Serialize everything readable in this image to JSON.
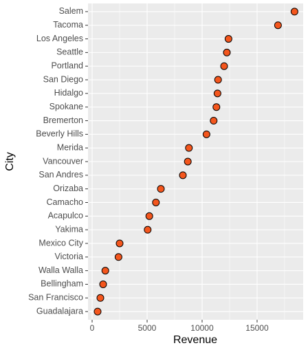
{
  "chart_data": {
    "type": "dot",
    "x_label": "Revenue",
    "y_label": "City",
    "categories": [
      "Salem",
      "Tacoma",
      "Los Angeles",
      "Seattle",
      "Portland",
      "San Diego",
      "Hidalgo",
      "Spokane",
      "Bremerton",
      "Beverly Hills",
      "Merida",
      "Vancouver",
      "San Andres",
      "Orizaba",
      "Camacho",
      "Acapulco",
      "Yakima",
      "Mexico City",
      "Victoria",
      "Walla Walla",
      "Bellingham",
      "San Francisco",
      "Guadalajara"
    ],
    "values": [
      18400,
      16900,
      12400,
      12250,
      12000,
      11450,
      11400,
      11300,
      11050,
      10400,
      8800,
      8700,
      8250,
      6250,
      5800,
      5200,
      5050,
      2500,
      2400,
      1200,
      1000,
      750,
      500
    ],
    "color": "#f4561d",
    "xlim": [
      -375,
      19190
    ],
    "xticks": [
      0,
      5000,
      10000,
      15000
    ],
    "grid": true
  }
}
